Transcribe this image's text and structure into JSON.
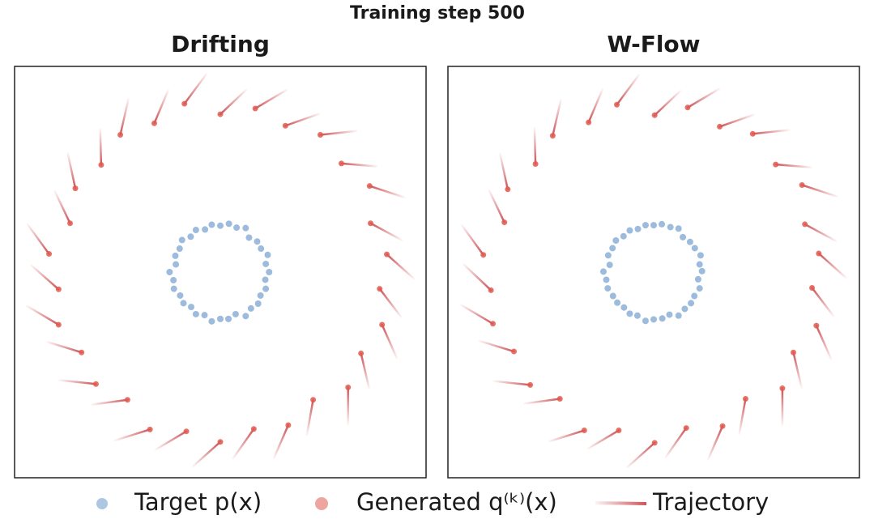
{
  "title": "Training step 500",
  "chart_data": [
    {
      "type": "scatter",
      "title": "Drifting",
      "xlim": [
        -4.3,
        4.3
      ],
      "ylim": [
        -4.3,
        4.3
      ],
      "series": [
        {
          "name": "Target p(x)",
          "color": "#5b8ec4",
          "x": [
            1.02,
            0.95,
            0.99,
            0.85,
            0.77,
            0.6,
            0.53,
            0.34,
            0.18,
            0,
            -0.18,
            -0.32,
            -0.51,
            -0.62,
            -0.8,
            -0.85,
            -0.94,
            -0.93,
            -1.06,
            -0.98,
            -0.97,
            -0.84,
            -0.77,
            -0.61,
            -0.51,
            -0.33,
            -0.18,
            0,
            0.17,
            0.32,
            0.53,
            0.64,
            0.79,
            0.84,
            0.95,
            0.94
          ],
          "y": [
            0,
            0.17,
            0.36,
            0.49,
            0.64,
            0.72,
            0.92,
            0.93,
            1.01,
            0.97,
            0.99,
            0.89,
            0.88,
            0.74,
            0.67,
            0.49,
            0.34,
            0.16,
            0,
            -0.17,
            -0.35,
            -0.49,
            -0.65,
            -0.73,
            -0.88,
            -0.9,
            -1.03,
            -0.98,
            -0.98,
            -0.88,
            -0.92,
            -0.76,
            -0.66,
            -0.49,
            -0.35,
            -0.16
          ]
        },
        {
          "name": "Generated q⁽ᵏ⁾(x)",
          "color": "#e05a50",
          "x": [
            3.48,
            3.14,
            3.12,
            2.53,
            2.09,
            1.36,
            0.73,
            0,
            -0.75,
            -1.38,
            -2.09,
            -2.49,
            -3.03,
            -3.14,
            -3.58,
            -3.38,
            -3.38,
            -2.9,
            -2.6,
            -1.94,
            -1.47,
            -0.71,
            0,
            0.7,
            1.42,
            1.94,
            2.67,
            2.94,
            3.38,
            3.33
          ],
          "y": [
            0.37,
            1.02,
            1.8,
            2.27,
            2.87,
            3.06,
            3.42,
            3.3,
            3.52,
            3.11,
            2.87,
            2.24,
            1.75,
            1.02,
            0.38,
            -0.36,
            -1.1,
            -1.68,
            -2.34,
            -2.67,
            -3.29,
            -3.33,
            -3.55,
            -3.28,
            -3.2,
            -2.67,
            -2.41,
            -1.7,
            -1.1,
            -0.35
          ]
        },
        {
          "name": "Trajectory",
          "color": "#c0282d",
          "x": [
            4.05,
            3.79,
            3.85,
            3.27,
            2.85,
            2.07,
            1.39,
            0.54,
            -0.29,
            -1.09,
            -1.92,
            -2.51,
            -3.19,
            -3.46,
            -4.03,
            -3.95,
            -4.04,
            -3.62,
            -3.36,
            -2.68,
            -2.2,
            -1.35,
            -0.57,
            0.27,
            1.12,
            1.81,
            2.67,
            3.11,
            3.69,
            3.78
          ],
          "y": [
            -0.14,
            0.67,
            1.56,
            2.21,
            2.95,
            3.31,
            3.81,
            3.81,
            4.14,
            3.8,
            3.62,
            2.99,
            2.49,
            1.69,
            1.0,
            0.14,
            -0.71,
            -1.46,
            -2.26,
            -2.77,
            -3.52,
            -3.71,
            -4.06,
            -3.89,
            -3.89,
            -3.4,
            -3.18,
            -2.43,
            -1.8,
            -0.94
          ]
        }
      ]
    },
    {
      "type": "scatter",
      "title": "W-Flow",
      "xlim": [
        -4.3,
        4.3
      ],
      "ylim": [
        -4.3,
        4.3
      ],
      "series": [
        {
          "name": "Target p(x)",
          "color": "#5b8ec4",
          "x": [
            1.01,
            0.96,
            0.98,
            0.86,
            0.76,
            0.61,
            0.52,
            0.35,
            0.17,
            0,
            -0.17,
            -0.33,
            -0.5,
            -0.63,
            -0.79,
            -0.86,
            -0.95,
            -0.92,
            -1.05,
            -0.99,
            -0.96,
            -0.85,
            -0.76,
            -0.62,
            -0.5,
            -0.34,
            -0.17,
            0,
            0.18,
            0.33,
            0.52,
            0.65,
            0.78,
            0.85,
            0.96,
            0.93
          ],
          "y": [
            0.02,
            0.16,
            0.35,
            0.5,
            0.63,
            0.73,
            0.91,
            0.94,
            1.0,
            0.98,
            0.98,
            0.9,
            0.87,
            0.75,
            0.66,
            0.5,
            0.35,
            0.15,
            0.01,
            -0.16,
            -0.34,
            -0.5,
            -0.64,
            -0.74,
            -0.87,
            -0.91,
            -1.02,
            -0.99,
            -0.97,
            -0.89,
            -0.91,
            -0.77,
            -0.65,
            -0.5,
            -0.34,
            -0.15
          ]
        },
        {
          "name": "Generated q⁽ᵏ⁾(x)",
          "color": "#e05a50",
          "x": [
            3.45,
            3.16,
            3.1,
            2.55,
            2.07,
            1.38,
            0.71,
            0.02,
            -0.77,
            -1.36,
            -2.11,
            -2.47,
            -3.05,
            -3.12,
            -3.56,
            -3.4,
            -3.36,
            -2.92,
            -2.58,
            -1.96,
            -1.45,
            -0.73,
            0.02,
            0.68,
            1.44,
            1.92,
            2.69,
            2.92,
            3.4,
            3.31
          ],
          "y": [
            0.39,
            1.0,
            1.82,
            2.25,
            2.89,
            3.04,
            3.44,
            3.28,
            3.5,
            3.13,
            2.85,
            2.26,
            1.73,
            1.04,
            0.36,
            -0.38,
            -1.08,
            -1.66,
            -2.36,
            -2.65,
            -3.31,
            -3.31,
            -3.57,
            -3.26,
            -3.22,
            -2.65,
            -2.43,
            -1.68,
            -1.12,
            -0.33
          ]
        },
        {
          "name": "Trajectory",
          "color": "#c0282d",
          "x": [
            4.02,
            3.81,
            3.83,
            3.29,
            2.83,
            2.09,
            1.37,
            0.56,
            -0.31,
            -1.07,
            -1.94,
            -2.49,
            -3.21,
            -3.44,
            -4.01,
            -3.97,
            -4.02,
            -3.64,
            -3.34,
            -2.7,
            -2.18,
            -1.37,
            -0.55,
            0.25,
            1.14,
            1.79,
            2.69,
            3.09,
            3.71,
            3.76
          ],
          "y": [
            -0.12,
            0.65,
            1.58,
            2.19,
            2.97,
            3.29,
            3.83,
            3.79,
            4.12,
            3.82,
            3.6,
            3.01,
            2.47,
            1.71,
            0.98,
            0.16,
            -0.69,
            -1.44,
            -2.28,
            -2.75,
            -3.54,
            -3.69,
            -4.08,
            -3.87,
            -3.91,
            -3.38,
            -3.2,
            -2.41,
            -1.82,
            -0.92
          ]
        }
      ]
    }
  ]
}
